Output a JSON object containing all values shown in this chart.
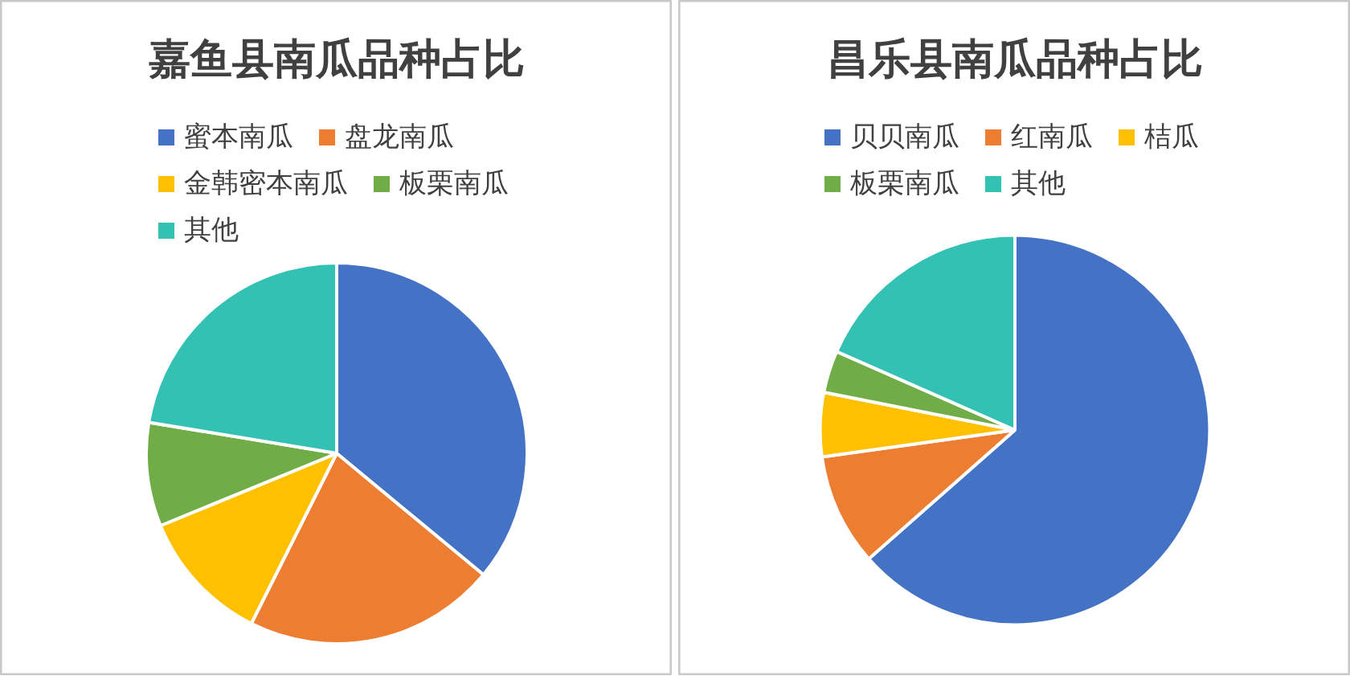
{
  "chart_data": [
    {
      "type": "pie",
      "title": "嘉鱼县南瓜品种占比",
      "legend": "top",
      "categories": [
        "蜜本南瓜",
        "盘龙南瓜",
        "金韩密本南瓜",
        "板栗南瓜",
        "其他"
      ],
      "values": [
        36,
        21.4,
        11.4,
        8.8,
        22.4
      ],
      "colors": [
        "#4472c4",
        "#ed7d31",
        "#ffc000",
        "#70ad47",
        "#33c1b4"
      ]
    },
    {
      "type": "pie",
      "title": "昌乐县南瓜品种占比",
      "legend": "top",
      "categories": [
        "贝贝南瓜",
        "红南瓜",
        "桔瓜",
        "板栗南瓜",
        "其他"
      ],
      "values": [
        63.5,
        9.3,
        5.3,
        3.5,
        18.4
      ],
      "colors": [
        "#4472c4",
        "#ed7d31",
        "#ffc000",
        "#70ad47",
        "#33c1b4"
      ]
    }
  ]
}
